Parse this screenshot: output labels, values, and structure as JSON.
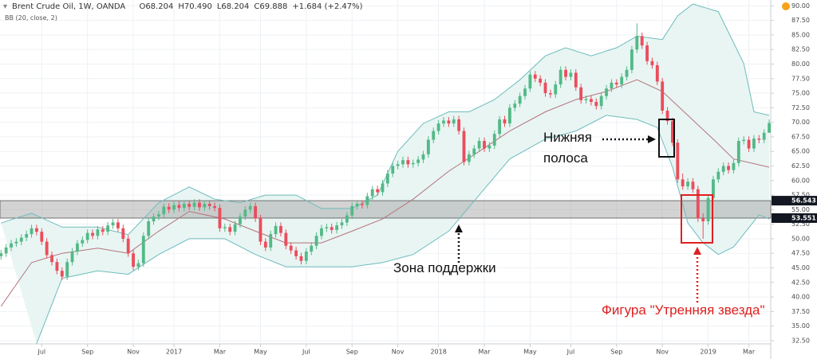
{
  "header": {
    "symbol": "Brent Crude Oil, 1W, OANDA",
    "ohlc": [
      "O68.204",
      "H70.490",
      "L68.204",
      "C69.888"
    ],
    "change": "+1.684 (+2.47%)",
    "indicator": "BB (20, close, 2)"
  },
  "annotations": {
    "lower_band": [
      "Нижняя",
      "полоса"
    ],
    "support_zone": "Зона поддержки",
    "morning_star": "Фигура \"Утренняя звезда\""
  },
  "chart_data": {
    "type": "candlestick",
    "colors": {
      "up": "#53b987",
      "down": "#eb4d5c"
    },
    "xlim": [
      -0.2,
      151.3
    ],
    "xticks": [
      {
        "value": 8,
        "label": "Jul"
      },
      {
        "value": 17,
        "label": "Sep"
      },
      {
        "value": 26,
        "label": "Nov"
      },
      {
        "value": 34,
        "label": "2017"
      },
      {
        "value": 43,
        "label": "Mar"
      },
      {
        "value": 51,
        "label": "May"
      },
      {
        "value": 60,
        "label": "Jul"
      },
      {
        "value": 69,
        "label": "Sep"
      },
      {
        "value": 78,
        "label": "Nov"
      },
      {
        "value": 86,
        "label": "2018"
      },
      {
        "value": 95,
        "label": "Mar"
      },
      {
        "value": 104,
        "label": "May"
      },
      {
        "value": 112,
        "label": "Jul"
      },
      {
        "value": 121,
        "label": "Sep"
      },
      {
        "value": 130,
        "label": "Nov"
      },
      {
        "value": 139,
        "label": "2019"
      },
      {
        "value": 147,
        "label": "Mar"
      }
    ],
    "ylim": [
      31.95,
      91.0
    ],
    "yticks": [
      {
        "value": 32.5,
        "label": "32.50"
      },
      {
        "value": 35,
        "label": "35.00"
      },
      {
        "value": 37.5,
        "label": "37.50"
      },
      {
        "value": 40,
        "label": "40.00"
      },
      {
        "value": 42.5,
        "label": "42.50"
      },
      {
        "value": 45,
        "label": "45.00"
      },
      {
        "value": 47.5,
        "label": "47.50"
      },
      {
        "value": 50,
        "label": "50.00"
      },
      {
        "value": 52.5,
        "label": "52.50"
      },
      {
        "value": 55,
        "label": "55.00"
      },
      {
        "value": 57.5,
        "label": "57.50"
      },
      {
        "value": 60,
        "label": "60.00"
      },
      {
        "value": 62.5,
        "label": "62.50"
      },
      {
        "value": 65,
        "label": "65.00"
      },
      {
        "value": 67.5,
        "label": "67.50"
      },
      {
        "value": 70,
        "label": "70.00"
      },
      {
        "value": 72.5,
        "label": "72.50"
      },
      {
        "value": 75,
        "label": "75.00"
      },
      {
        "value": 77.5,
        "label": "77.50"
      },
      {
        "value": 80,
        "label": "80.00"
      },
      {
        "value": 82.5,
        "label": "82.50"
      },
      {
        "value": 85,
        "label": "85.00"
      },
      {
        "value": 87.5,
        "label": "87.50"
      },
      {
        "value": 90,
        "label": "90.00"
      }
    ],
    "grid": true,
    "zone": {
      "high": 56.543,
      "low": 53.551,
      "color": "#9e9e9e"
    },
    "ohlc": [
      [
        47.0,
        48.1,
        46.4,
        47.5
      ],
      [
        47.5,
        49.1,
        46.9,
        48.5
      ],
      [
        48.5,
        49.8,
        47.9,
        49.2
      ],
      [
        49.2,
        50.1,
        48.6,
        49.5
      ],
      [
        49.5,
        50.8,
        48.9,
        50.2
      ],
      [
        50.2,
        51.4,
        49.6,
        50.8
      ],
      [
        50.8,
        52.4,
        50.2,
        51.8
      ],
      [
        51.8,
        52.4,
        50.6,
        51.2
      ],
      [
        51.2,
        51.8,
        48.9,
        49.5
      ],
      [
        49.5,
        50.1,
        46.6,
        47.2
      ],
      [
        47.2,
        47.8,
        45.4,
        46.0
      ],
      [
        46.0,
        46.6,
        43.9,
        44.5
      ],
      [
        44.5,
        45.1,
        42.9,
        43.5
      ],
      [
        43.5,
        46.6,
        42.9,
        46.0
      ],
      [
        46.0,
        48.4,
        45.4,
        47.8
      ],
      [
        47.8,
        49.8,
        47.2,
        49.2
      ],
      [
        49.2,
        50.4,
        48.6,
        49.8
      ],
      [
        49.8,
        51.6,
        49.2,
        51.0
      ],
      [
        51.0,
        51.6,
        49.9,
        50.5
      ],
      [
        50.5,
        52.2,
        49.9,
        51.6
      ],
      [
        51.6,
        52.2,
        50.6,
        51.2
      ],
      [
        51.2,
        52.9,
        50.6,
        52.3
      ],
      [
        52.3,
        53.4,
        51.7,
        52.8
      ],
      [
        52.8,
        53.4,
        51.2,
        51.8
      ],
      [
        51.8,
        52.4,
        49.4,
        50.0
      ],
      [
        50.0,
        50.6,
        46.9,
        47.5
      ],
      [
        47.5,
        48.1,
        44.6,
        45.2
      ],
      [
        45.2,
        46.4,
        44.6,
        45.8
      ],
      [
        45.8,
        51.1,
        45.2,
        50.5
      ],
      [
        50.5,
        53.6,
        49.9,
        53.0
      ],
      [
        53.0,
        54.4,
        52.4,
        53.8
      ],
      [
        53.8,
        54.8,
        53.2,
        54.2
      ],
      [
        54.2,
        56.1,
        53.6,
        55.5
      ],
      [
        55.5,
        56.1,
        54.4,
        55.0
      ],
      [
        55.0,
        56.4,
        54.4,
        55.8
      ],
      [
        55.8,
        56.4,
        54.7,
        55.3
      ],
      [
        55.3,
        56.6,
        54.7,
        56.0
      ],
      [
        56.0,
        56.6,
        54.9,
        55.5
      ],
      [
        55.5,
        56.8,
        54.9,
        56.2
      ],
      [
        56.2,
        56.8,
        54.8,
        55.4
      ],
      [
        55.4,
        56.6,
        54.8,
        56.0
      ],
      [
        56.0,
        56.6,
        55.0,
        55.6
      ],
      [
        55.6,
        56.2,
        54.7,
        55.3
      ],
      [
        55.3,
        55.9,
        51.2,
        51.8
      ],
      [
        51.8,
        52.6,
        51.2,
        52.0
      ],
      [
        52.0,
        52.6,
        50.6,
        51.2
      ],
      [
        51.2,
        53.1,
        50.6,
        52.5
      ],
      [
        52.5,
        54.4,
        51.9,
        53.8
      ],
      [
        53.8,
        55.6,
        53.2,
        55.0
      ],
      [
        55.0,
        56.2,
        54.4,
        55.6
      ],
      [
        55.6,
        56.2,
        52.9,
        53.5
      ],
      [
        53.5,
        54.1,
        48.9,
        49.5
      ],
      [
        49.5,
        50.1,
        47.9,
        48.5
      ],
      [
        48.5,
        51.4,
        47.9,
        50.8
      ],
      [
        50.8,
        52.8,
        50.2,
        52.2
      ],
      [
        52.2,
        52.8,
        50.4,
        51.0
      ],
      [
        51.0,
        51.6,
        48.2,
        48.8
      ],
      [
        48.8,
        49.4,
        47.4,
        48.0
      ],
      [
        48.0,
        48.6,
        46.4,
        47.0
      ],
      [
        47.0,
        47.6,
        45.6,
        46.2
      ],
      [
        46.2,
        48.4,
        45.6,
        47.8
      ],
      [
        47.8,
        49.4,
        47.2,
        48.8
      ],
      [
        48.8,
        51.1,
        48.2,
        50.5
      ],
      [
        50.5,
        52.4,
        49.9,
        51.8
      ],
      [
        51.8,
        52.6,
        51.2,
        52.0
      ],
      [
        52.0,
        52.6,
        50.9,
        51.5
      ],
      [
        51.5,
        52.9,
        50.9,
        52.3
      ],
      [
        52.3,
        53.4,
        51.7,
        52.8
      ],
      [
        52.8,
        54.6,
        52.2,
        54.0
      ],
      [
        54.0,
        56.2,
        53.4,
        55.6
      ],
      [
        55.6,
        56.6,
        55.0,
        56.0
      ],
      [
        56.0,
        56.6,
        55.2,
        55.8
      ],
      [
        55.8,
        57.9,
        55.2,
        57.3
      ],
      [
        57.3,
        59.1,
        56.7,
        58.5
      ],
      [
        58.5,
        59.1,
        57.4,
        58.0
      ],
      [
        58.0,
        60.1,
        57.4,
        59.5
      ],
      [
        59.5,
        61.8,
        58.9,
        61.2
      ],
      [
        61.2,
        63.1,
        60.6,
        62.5
      ],
      [
        62.5,
        63.4,
        61.9,
        62.8
      ],
      [
        62.8,
        64.1,
        62.2,
        63.5
      ],
      [
        63.5,
        64.1,
        62.2,
        62.8
      ],
      [
        62.8,
        63.6,
        62.2,
        63.0
      ],
      [
        63.0,
        64.2,
        62.4,
        63.6
      ],
      [
        63.6,
        65.1,
        63.0,
        64.5
      ],
      [
        64.5,
        67.6,
        63.9,
        67.0
      ],
      [
        67.0,
        69.1,
        66.4,
        68.5
      ],
      [
        68.5,
        70.4,
        67.9,
        69.8
      ],
      [
        69.8,
        70.9,
        69.2,
        70.3
      ],
      [
        70.3,
        70.9,
        69.2,
        69.8
      ],
      [
        69.8,
        71.1,
        69.2,
        70.5
      ],
      [
        70.5,
        71.1,
        67.9,
        68.5
      ],
      [
        68.5,
        69.1,
        62.6,
        63.2
      ],
      [
        63.2,
        65.1,
        62.6,
        64.5
      ],
      [
        64.5,
        66.1,
        63.9,
        65.5
      ],
      [
        65.5,
        67.4,
        64.9,
        66.8
      ],
      [
        66.8,
        67.4,
        64.9,
        65.5
      ],
      [
        65.5,
        66.6,
        64.9,
        66.0
      ],
      [
        66.0,
        68.6,
        65.4,
        68.0
      ],
      [
        68.0,
        71.1,
        67.4,
        70.5
      ],
      [
        70.5,
        71.1,
        69.2,
        69.8
      ],
      [
        69.8,
        73.1,
        69.2,
        72.5
      ],
      [
        72.5,
        73.8,
        71.9,
        73.2
      ],
      [
        73.2,
        75.1,
        72.6,
        74.5
      ],
      [
        74.5,
        76.4,
        73.9,
        75.8
      ],
      [
        75.8,
        78.8,
        75.2,
        78.2
      ],
      [
        78.2,
        78.8,
        76.9,
        77.5
      ],
      [
        77.5,
        78.1,
        76.2,
        76.8
      ],
      [
        76.8,
        77.4,
        74.4,
        75.0
      ],
      [
        75.0,
        75.6,
        74.2,
        74.8
      ],
      [
        74.8,
        77.1,
        74.2,
        76.5
      ],
      [
        76.5,
        79.6,
        75.9,
        79.0
      ],
      [
        79.0,
        79.6,
        77.2,
        77.8
      ],
      [
        77.8,
        79.1,
        77.2,
        78.5
      ],
      [
        78.5,
        79.1,
        75.4,
        76.0
      ],
      [
        76.0,
        76.6,
        73.2,
        73.8
      ],
      [
        73.8,
        74.6,
        73.2,
        74.0
      ],
      [
        74.0,
        74.6,
        72.9,
        73.5
      ],
      [
        73.5,
        74.1,
        72.2,
        72.8
      ],
      [
        72.8,
        75.1,
        72.2,
        74.5
      ],
      [
        74.5,
        76.4,
        73.9,
        75.8
      ],
      [
        75.8,
        77.4,
        75.2,
        76.8
      ],
      [
        76.8,
        77.4,
        75.9,
        76.5
      ],
      [
        76.5,
        78.4,
        75.9,
        77.8
      ],
      [
        77.8,
        79.6,
        77.2,
        79.0
      ],
      [
        79.0,
        83.1,
        78.4,
        82.5
      ],
      [
        82.5,
        87.0,
        81.9,
        84.8
      ],
      [
        84.8,
        85.4,
        82.6,
        83.2
      ],
      [
        83.2,
        83.8,
        79.9,
        80.5
      ],
      [
        80.5,
        81.1,
        79.2,
        79.8
      ],
      [
        79.8,
        80.4,
        76.4,
        77.0
      ],
      [
        77.0,
        77.6,
        71.4,
        72.0
      ],
      [
        72.0,
        72.6,
        69.6,
        70.2
      ],
      [
        70.2,
        70.8,
        65.9,
        66.5
      ],
      [
        66.5,
        67.1,
        59.6,
        60.2
      ],
      [
        60.2,
        61.2,
        58.4,
        59.0
      ],
      [
        59.0,
        60.4,
        58.4,
        59.8
      ],
      [
        59.8,
        60.4,
        57.9,
        58.5
      ],
      [
        58.5,
        59.1,
        52.9,
        53.5
      ],
      [
        53.5,
        54.4,
        50.0,
        53.0
      ],
      [
        53.0,
        57.6,
        52.4,
        57.0
      ],
      [
        57.0,
        60.8,
        56.4,
        60.2
      ],
      [
        60.2,
        62.1,
        59.6,
        61.5
      ],
      [
        61.5,
        63.1,
        60.9,
        62.5
      ],
      [
        62.5,
        63.1,
        61.2,
        61.8
      ],
      [
        61.8,
        63.6,
        61.2,
        63.0
      ],
      [
        63.0,
        67.4,
        62.4,
        66.8
      ],
      [
        66.8,
        67.6,
        66.2,
        67.0
      ],
      [
        67.0,
        67.6,
        64.9,
        65.5
      ],
      [
        65.5,
        67.8,
        64.9,
        67.2
      ],
      [
        67.2,
        67.8,
        66.4,
        67.0
      ],
      [
        67.0,
        68.8,
        66.4,
        68.2
      ],
      [
        68.204,
        70.49,
        68.204,
        69.888
      ]
    ],
    "band_fill": "#e8f5f3",
    "bands": [
      {
        "color": "#6fbcbc",
        "x": [
          0,
          6,
          12,
          19,
          25,
          31,
          37,
          42,
          47,
          52,
          58,
          63,
          69,
          74,
          78,
          83,
          88,
          92,
          97,
          102,
          107,
          111,
          116,
          121,
          125,
          130,
          133,
          136,
          141,
          146,
          148,
          151
        ],
        "values": [
          52.7,
          54.4,
          52,
          52,
          50.7,
          56.2,
          58.9,
          56.8,
          56.2,
          57.5,
          57.5,
          55.2,
          55.2,
          57.5,
          65,
          69.8,
          71.8,
          71.8,
          73.9,
          77.3,
          81.4,
          82.8,
          81.4,
          82.8,
          84.8,
          84.2,
          88.3,
          90.3,
          89,
          80.1,
          71.8,
          71.2
        ]
      },
      {
        "color": "#b5737b",
        "x": [
          0,
          6,
          12,
          19,
          25,
          31,
          37,
          44,
          50,
          56,
          63,
          69,
          75,
          81,
          88,
          94,
          100,
          107,
          113,
          119,
          125,
          130,
          135,
          140,
          144,
          151
        ],
        "values": [
          38.4,
          45.9,
          47.5,
          48.4,
          47.5,
          51.3,
          54.7,
          53.4,
          51.3,
          49.3,
          49.3,
          51.3,
          53.4,
          56.8,
          61.6,
          65,
          68.5,
          71.8,
          73.9,
          75.3,
          77.3,
          75.3,
          71.2,
          67.1,
          63.7,
          62.3
        ]
      },
      {
        "color": "#6fbcbc",
        "x": [
          7,
          12,
          19,
          25,
          31,
          37,
          44,
          50,
          56,
          63,
          69,
          75,
          81,
          88,
          94,
          100,
          107,
          113,
          119,
          125,
          129,
          132,
          135,
          138,
          141,
          144,
          149,
          151
        ],
        "values": [
          32,
          43.2,
          44.5,
          43.9,
          47.3,
          50,
          50,
          47.3,
          45.2,
          45.2,
          45.2,
          45.9,
          47.3,
          51.3,
          57.5,
          63.7,
          67.1,
          68.5,
          71.2,
          70.5,
          69.1,
          62.3,
          52.7,
          49.3,
          47.3,
          48.6,
          54.1,
          53.4
        ]
      }
    ]
  }
}
